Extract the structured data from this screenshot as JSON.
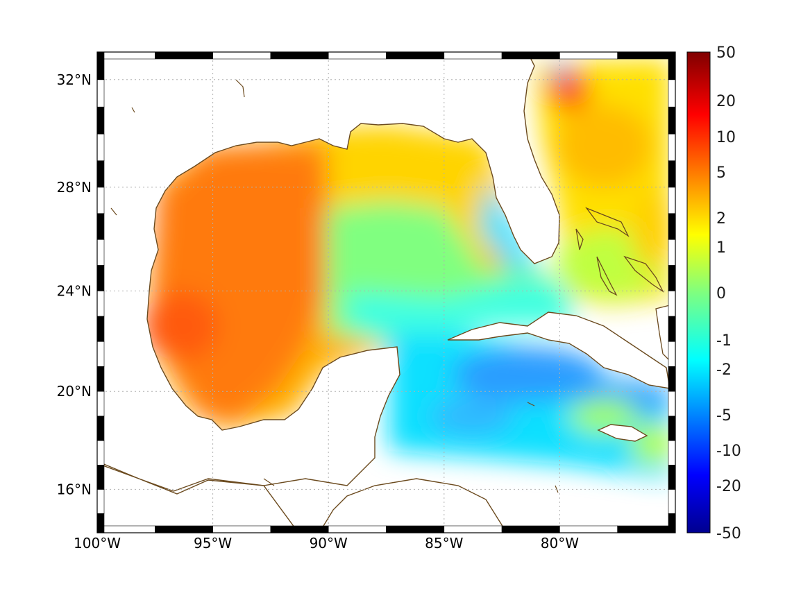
{
  "map": {
    "projection": "mercator",
    "lon_range": [
      -100,
      -75
    ],
    "lat_range": [
      14.2,
      33
    ],
    "lon_ticks": [
      {
        "value": -100,
        "label": "100°W"
      },
      {
        "value": -95,
        "label": "95°W"
      },
      {
        "value": -90,
        "label": "90°W"
      },
      {
        "value": -85,
        "label": "85°W"
      },
      {
        "value": -80,
        "label": "80°W"
      }
    ],
    "lat_ticks": [
      {
        "value": 32,
        "label": "32°N"
      },
      {
        "value": 28,
        "label": "28°N"
      },
      {
        "value": 24,
        "label": "24°N"
      },
      {
        "value": 20,
        "label": "20°N"
      },
      {
        "value": 16,
        "label": "16°N"
      }
    ],
    "grid": "dotted",
    "coastline_color": "#6b4a1e",
    "field_regions": [
      {
        "name": "western-gulf",
        "value": 5
      },
      {
        "name": "southwest-gulf-bay-of-campeche",
        "value": 6
      },
      {
        "name": "northeast-gulf",
        "value": 2
      },
      {
        "name": "eastern-gulf",
        "value": 0
      },
      {
        "name": "west-florida-shelf",
        "value": -1
      },
      {
        "name": "florida-straits",
        "value": -1
      },
      {
        "name": "northwest-caribbean",
        "value": -2
      },
      {
        "name": "south-of-cuba",
        "value": -4
      },
      {
        "name": "atlantic-east-of-florida",
        "value": 2
      },
      {
        "name": "atlantic-off-georgia",
        "value": 8
      },
      {
        "name": "bahamas",
        "value": 1
      }
    ]
  },
  "colorbar": {
    "labels": [
      "50",
      "20",
      "10",
      "5",
      "2",
      "1",
      "0",
      "-1",
      "-2",
      "-5",
      "-10",
      "-20",
      "-50"
    ],
    "colormap": "jet"
  }
}
